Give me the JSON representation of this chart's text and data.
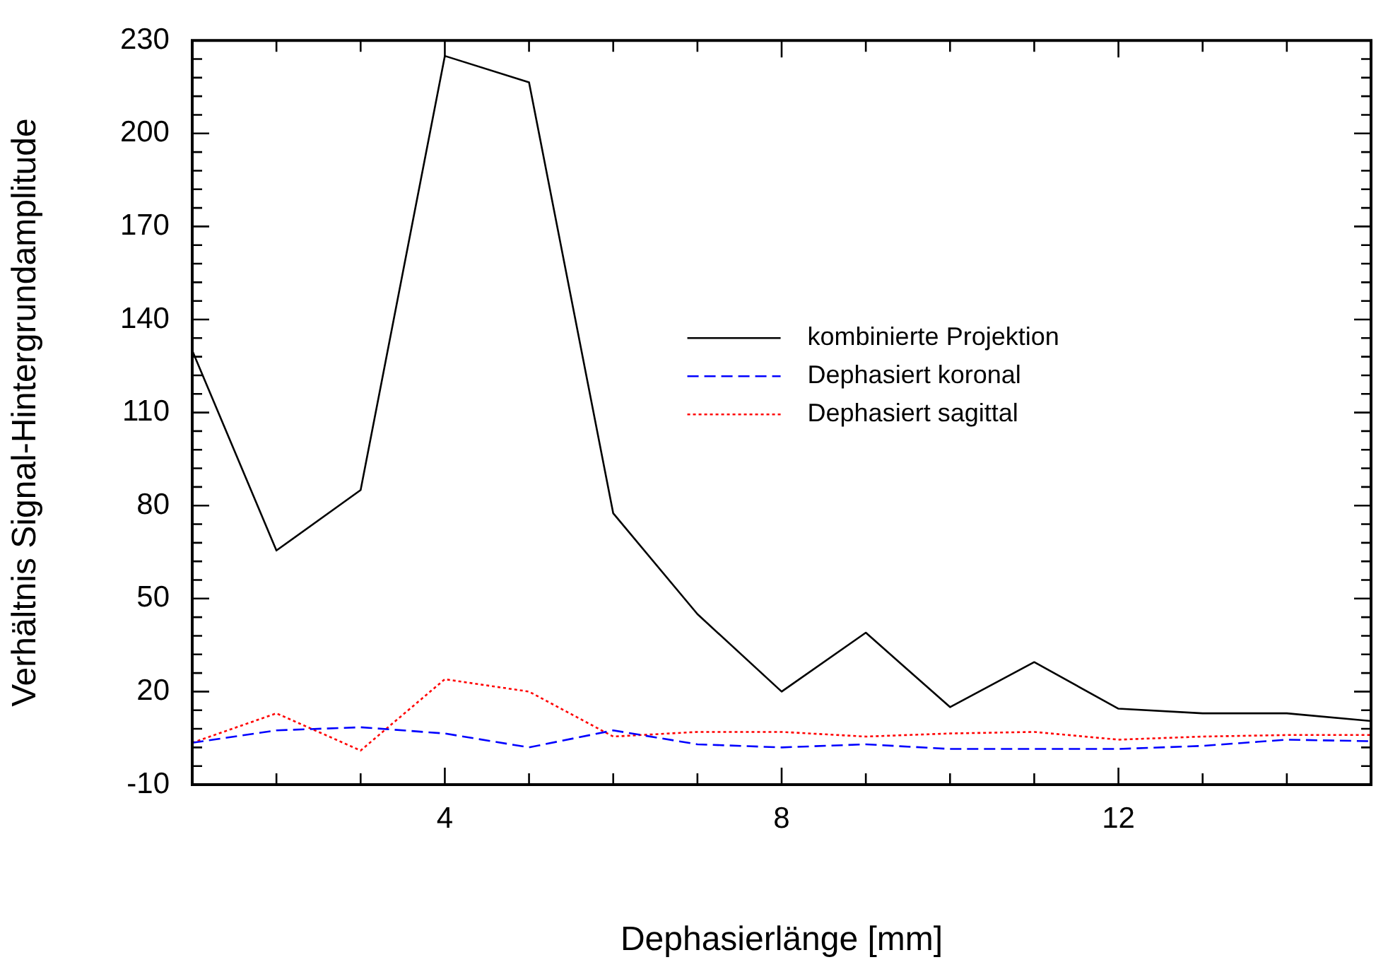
{
  "chart_data": {
    "type": "line",
    "xlabel": "Dephasierlänge [mm]",
    "ylabel": "Verhältnis Signal-Hintergrundamplitude",
    "x": [
      1,
      2,
      3,
      4,
      5,
      6,
      7,
      8,
      9,
      10,
      11,
      12,
      13,
      14,
      15
    ],
    "xlim": [
      1,
      15
    ],
    "xticks": [
      {
        "value": 1,
        "label": null
      },
      {
        "value": 2,
        "label": null
      },
      {
        "value": 3,
        "label": null
      },
      4,
      {
        "value": 5,
        "label": null
      },
      {
        "value": 6,
        "label": null
      },
      {
        "value": 7,
        "label": null
      },
      8,
      {
        "value": 9,
        "label": null
      },
      {
        "value": 10,
        "label": null
      },
      {
        "value": 11,
        "label": null
      },
      12,
      {
        "value": 13,
        "label": null
      },
      {
        "value": 14,
        "label": null
      },
      {
        "value": 15,
        "label": null
      }
    ],
    "ylim": [
      -10,
      230
    ],
    "yticks": [
      -10,
      {
        "value": -4,
        "label": null
      },
      {
        "value": 2,
        "label": null
      },
      {
        "value": 8,
        "label": null
      },
      {
        "value": 14,
        "label": null
      },
      20,
      {
        "value": 26,
        "label": null
      },
      {
        "value": 32,
        "label": null
      },
      {
        "value": 38,
        "label": null
      },
      {
        "value": 44,
        "label": null
      },
      50,
      {
        "value": 56,
        "label": null
      },
      {
        "value": 62,
        "label": null
      },
      {
        "value": 68,
        "label": null
      },
      {
        "value": 74,
        "label": null
      },
      80,
      {
        "value": 86,
        "label": null
      },
      {
        "value": 92,
        "label": null
      },
      {
        "value": 98,
        "label": null
      },
      {
        "value": 104,
        "label": null
      },
      110,
      {
        "value": 116,
        "label": null
      },
      {
        "value": 122,
        "label": null
      },
      {
        "value": 128,
        "label": null
      },
      {
        "value": 134,
        "label": null
      },
      140,
      {
        "value": 146,
        "label": null
      },
      {
        "value": 152,
        "label": null
      },
      {
        "value": 158,
        "label": null
      },
      {
        "value": 164,
        "label": null
      },
      170,
      {
        "value": 176,
        "label": null
      },
      {
        "value": 182,
        "label": null
      },
      {
        "value": 188,
        "label": null
      },
      {
        "value": 194,
        "label": null
      },
      200,
      {
        "value": 206,
        "label": null
      },
      {
        "value": 212,
        "label": null
      },
      {
        "value": 218,
        "label": null
      },
      {
        "value": 224,
        "label": null
      },
      230
    ],
    "grid": false,
    "legend": "right",
    "marker": "none",
    "series": [
      {
        "name": "kombinierte Projektion",
        "color": "#000000",
        "line_style": "solid",
        "values": [
          130,
          65.5,
          85,
          225,
          216.5,
          77.5,
          45,
          20,
          39,
          15,
          29.5,
          14.5,
          13,
          13,
          10.5
        ]
      },
      {
        "name": "Dephasiert koronal",
        "color": "#0000ff",
        "line_style": "dashed",
        "values": [
          3.5,
          7.5,
          8.5,
          6.5,
          2,
          7.5,
          3,
          2,
          3,
          1.5,
          1.5,
          1.5,
          2.5,
          4.5,
          4
        ]
      },
      {
        "name": "Dephasiert sagittal",
        "color": "#ff0000",
        "line_style": "dotted",
        "values": [
          3.5,
          13,
          1,
          24,
          20,
          5.5,
          7,
          7,
          5.5,
          6.5,
          7,
          4.5,
          5.5,
          6,
          6
        ]
      }
    ]
  }
}
